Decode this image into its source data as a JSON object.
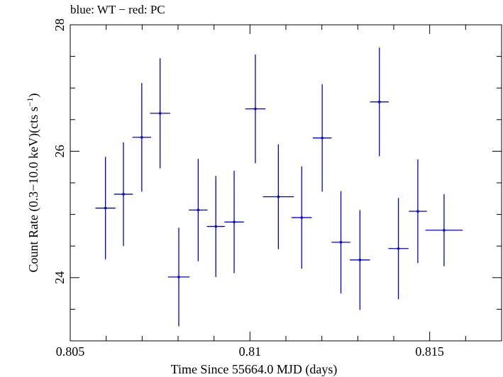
{
  "chart_data": {
    "type": "scatter",
    "title": "blue: WT − red: PC",
    "xlabel": "Time Since 55664.0 MJD (days)",
    "ylabel": "Count Rate (0.3−10.0 keV)(cts s",
    "ylabel_sup": "−1",
    "ylabel_end": ")",
    "xlim": [
      0.805,
      0.817
    ],
    "ylim": [
      23.0,
      28.0
    ],
    "xticks": [
      0.805,
      0.81,
      0.815
    ],
    "xtick_labels": [
      "0.805",
      "0.81",
      "0.815"
    ],
    "yticks": [
      24,
      26,
      28
    ],
    "ytick_labels": [
      "24",
      "26",
      "28"
    ],
    "grid": false,
    "series": [
      {
        "color": "#0000dd",
        "points": [
          {
            "x": 0.80598,
            "xerr": 0.00028,
            "y": 25.1,
            "yerr": 0.81
          },
          {
            "x": 0.80648,
            "xerr": 0.00026,
            "y": 25.32,
            "yerr": 0.82
          },
          {
            "x": 0.80699,
            "xerr": 0.00026,
            "y": 26.22,
            "yerr": 0.86
          },
          {
            "x": 0.8075,
            "xerr": 0.00028,
            "y": 26.6,
            "yerr": 0.87
          },
          {
            "x": 0.80802,
            "xerr": 0.0003,
            "y": 24.01,
            "yerr": 0.78
          },
          {
            "x": 0.80856,
            "xerr": 0.00026,
            "y": 25.07,
            "yerr": 0.81
          },
          {
            "x": 0.80905,
            "xerr": 0.00025,
            "y": 24.81,
            "yerr": 0.8
          },
          {
            "x": 0.80956,
            "xerr": 0.00027,
            "y": 24.88,
            "yerr": 0.81
          },
          {
            "x": 0.81015,
            "xerr": 0.00028,
            "y": 26.67,
            "yerr": 0.86
          },
          {
            "x": 0.81079,
            "xerr": 0.00043,
            "y": 25.28,
            "yerr": 0.83
          },
          {
            "x": 0.81144,
            "xerr": 0.00028,
            "y": 24.95,
            "yerr": 0.81
          },
          {
            "x": 0.81201,
            "xerr": 0.00026,
            "y": 26.21,
            "yerr": 0.85
          },
          {
            "x": 0.81253,
            "xerr": 0.00026,
            "y": 24.56,
            "yerr": 0.81
          },
          {
            "x": 0.81306,
            "xerr": 0.00028,
            "y": 24.28,
            "yerr": 0.79
          },
          {
            "x": 0.8136,
            "xerr": 0.00026,
            "y": 26.78,
            "yerr": 0.86
          },
          {
            "x": 0.81413,
            "xerr": 0.00028,
            "y": 24.46,
            "yerr": 0.8
          },
          {
            "x": 0.81467,
            "xerr": 0.00025,
            "y": 25.05,
            "yerr": 0.82
          },
          {
            "x": 0.8154,
            "xerr": 0.00052,
            "y": 24.75,
            "yerr": 0.57
          }
        ]
      }
    ]
  }
}
